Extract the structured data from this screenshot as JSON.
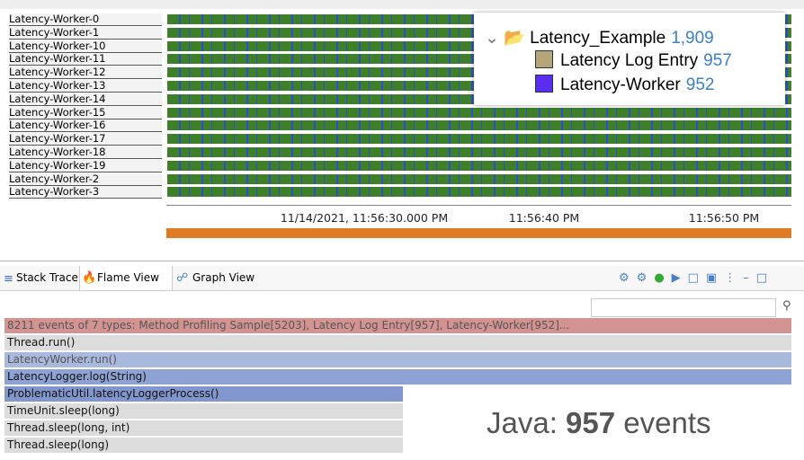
{
  "threads": [
    "Latency-Worker-0",
    "Latency-Worker-1",
    "Latency-Worker-10",
    "Latency-Worker-11",
    "Latency-Worker-12",
    "Latency-Worker-13",
    "Latency-Worker-14",
    "Latency-Worker-15",
    "Latency-Worker-16",
    "Latency-Worker-17",
    "Latency-Worker-18",
    "Latency-Worker-19",
    "Latency-Worker-2",
    "Latency-Worker-3"
  ],
  "popup": {
    "folder": {
      "name": "Latency_Example",
      "count": "1,909"
    },
    "items": [
      {
        "name": "Latency Log Entry",
        "count": "957",
        "color": "#b5a67a"
      },
      {
        "name": "Latency-Worker",
        "count": "952",
        "color": "#5a2ef0"
      }
    ]
  },
  "timeline": {
    "labels": [
      "11/14/2021, 11:56:30.000 PM",
      "11:56:40 PM",
      "11:56:50 PM"
    ]
  },
  "tabs": [
    "Stack Trace",
    "Flame View",
    "Graph View"
  ],
  "flame": {
    "rows": [
      {
        "label": "8211 events of 7 types: Method Profiling Sample[5203], Latency Log Entry[957], Latency-Worker[952]...",
        "color": "#d39491"
      },
      {
        "label": "Thread.run()",
        "color": "#dcdcdc"
      },
      {
        "label": "LatencyWorker.run()",
        "color": "#a9b8dd"
      },
      {
        "label": "LatencyLogger.log(String)",
        "color": "#8ea3d3"
      },
      {
        "label": "ProblematicUtil.latencyLoggerProcess()",
        "color": "#8196cc"
      },
      {
        "label": "TimeUnit.sleep(long)",
        "color": "#dcdcdc"
      },
      {
        "label": "Thread.sleep(long, int)",
        "color": "#dcdcdc"
      },
      {
        "label": "Thread.sleep(long)",
        "color": "#dcdcdc"
      }
    ]
  },
  "annotation": {
    "prefix": "Java:",
    "number": "957",
    "suffix": "events"
  }
}
